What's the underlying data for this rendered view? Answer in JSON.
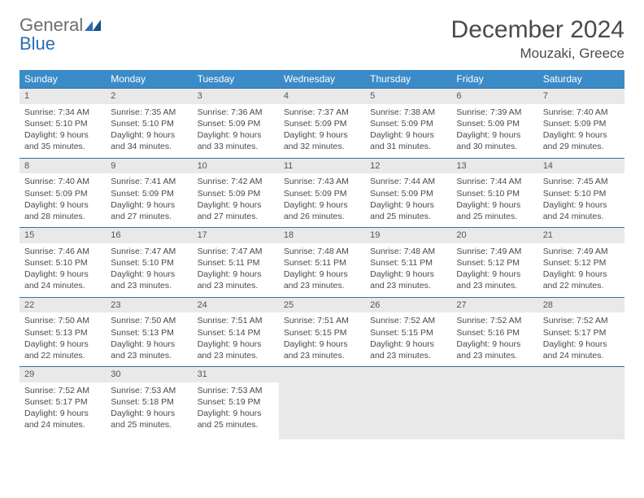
{
  "logo": {
    "text1": "General",
    "text2": "Blue"
  },
  "title": "December 2024",
  "location": "Mouzaki, Greece",
  "colors": {
    "header_bg": "#3b8bc8",
    "header_fg": "#ffffff",
    "daynum_bg": "#e9e9e9",
    "cell_border": "#3b6fa0",
    "text": "#4a4a4a"
  },
  "weekdays": [
    "Sunday",
    "Monday",
    "Tuesday",
    "Wednesday",
    "Thursday",
    "Friday",
    "Saturday"
  ],
  "weeks": [
    [
      {
        "n": "1",
        "sr": "7:34 AM",
        "ss": "5:10 PM",
        "dl": "9 hours and 35 minutes."
      },
      {
        "n": "2",
        "sr": "7:35 AM",
        "ss": "5:10 PM",
        "dl": "9 hours and 34 minutes."
      },
      {
        "n": "3",
        "sr": "7:36 AM",
        "ss": "5:09 PM",
        "dl": "9 hours and 33 minutes."
      },
      {
        "n": "4",
        "sr": "7:37 AM",
        "ss": "5:09 PM",
        "dl": "9 hours and 32 minutes."
      },
      {
        "n": "5",
        "sr": "7:38 AM",
        "ss": "5:09 PM",
        "dl": "9 hours and 31 minutes."
      },
      {
        "n": "6",
        "sr": "7:39 AM",
        "ss": "5:09 PM",
        "dl": "9 hours and 30 minutes."
      },
      {
        "n": "7",
        "sr": "7:40 AM",
        "ss": "5:09 PM",
        "dl": "9 hours and 29 minutes."
      }
    ],
    [
      {
        "n": "8",
        "sr": "7:40 AM",
        "ss": "5:09 PM",
        "dl": "9 hours and 28 minutes."
      },
      {
        "n": "9",
        "sr": "7:41 AM",
        "ss": "5:09 PM",
        "dl": "9 hours and 27 minutes."
      },
      {
        "n": "10",
        "sr": "7:42 AM",
        "ss": "5:09 PM",
        "dl": "9 hours and 27 minutes."
      },
      {
        "n": "11",
        "sr": "7:43 AM",
        "ss": "5:09 PM",
        "dl": "9 hours and 26 minutes."
      },
      {
        "n": "12",
        "sr": "7:44 AM",
        "ss": "5:09 PM",
        "dl": "9 hours and 25 minutes."
      },
      {
        "n": "13",
        "sr": "7:44 AM",
        "ss": "5:10 PM",
        "dl": "9 hours and 25 minutes."
      },
      {
        "n": "14",
        "sr": "7:45 AM",
        "ss": "5:10 PM",
        "dl": "9 hours and 24 minutes."
      }
    ],
    [
      {
        "n": "15",
        "sr": "7:46 AM",
        "ss": "5:10 PM",
        "dl": "9 hours and 24 minutes."
      },
      {
        "n": "16",
        "sr": "7:47 AM",
        "ss": "5:10 PM",
        "dl": "9 hours and 23 minutes."
      },
      {
        "n": "17",
        "sr": "7:47 AM",
        "ss": "5:11 PM",
        "dl": "9 hours and 23 minutes."
      },
      {
        "n": "18",
        "sr": "7:48 AM",
        "ss": "5:11 PM",
        "dl": "9 hours and 23 minutes."
      },
      {
        "n": "19",
        "sr": "7:48 AM",
        "ss": "5:11 PM",
        "dl": "9 hours and 23 minutes."
      },
      {
        "n": "20",
        "sr": "7:49 AM",
        "ss": "5:12 PM",
        "dl": "9 hours and 23 minutes."
      },
      {
        "n": "21",
        "sr": "7:49 AM",
        "ss": "5:12 PM",
        "dl": "9 hours and 22 minutes."
      }
    ],
    [
      {
        "n": "22",
        "sr": "7:50 AM",
        "ss": "5:13 PM",
        "dl": "9 hours and 22 minutes."
      },
      {
        "n": "23",
        "sr": "7:50 AM",
        "ss": "5:13 PM",
        "dl": "9 hours and 23 minutes."
      },
      {
        "n": "24",
        "sr": "7:51 AM",
        "ss": "5:14 PM",
        "dl": "9 hours and 23 minutes."
      },
      {
        "n": "25",
        "sr": "7:51 AM",
        "ss": "5:15 PM",
        "dl": "9 hours and 23 minutes."
      },
      {
        "n": "26",
        "sr": "7:52 AM",
        "ss": "5:15 PM",
        "dl": "9 hours and 23 minutes."
      },
      {
        "n": "27",
        "sr": "7:52 AM",
        "ss": "5:16 PM",
        "dl": "9 hours and 23 minutes."
      },
      {
        "n": "28",
        "sr": "7:52 AM",
        "ss": "5:17 PM",
        "dl": "9 hours and 24 minutes."
      }
    ],
    [
      {
        "n": "29",
        "sr": "7:52 AM",
        "ss": "5:17 PM",
        "dl": "9 hours and 24 minutes."
      },
      {
        "n": "30",
        "sr": "7:53 AM",
        "ss": "5:18 PM",
        "dl": "9 hours and 25 minutes."
      },
      {
        "n": "31",
        "sr": "7:53 AM",
        "ss": "5:19 PM",
        "dl": "9 hours and 25 minutes."
      },
      null,
      null,
      null,
      null
    ]
  ],
  "labels": {
    "sunrise": "Sunrise:",
    "sunset": "Sunset:",
    "daylight": "Daylight:"
  }
}
